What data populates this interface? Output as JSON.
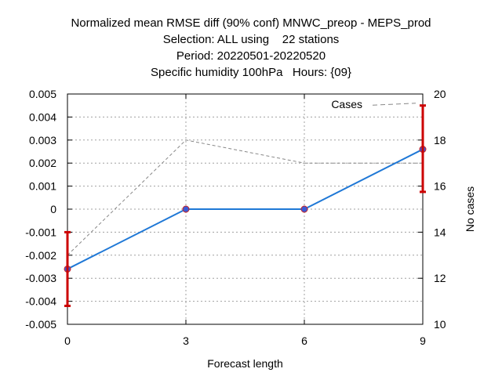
{
  "chart_data": {
    "type": "line",
    "title": [
      "Normalized mean RMSE diff (90% conf) MNWC_preop - MEPS_prod",
      "Selection: ALL using    22 stations",
      "Period: 20220501-20220520",
      "Specific humidity 100hPa   Hours: {09}"
    ],
    "xlabel": "Forecast length",
    "ylabel": "",
    "y2label": "No cases",
    "x": [
      0,
      3,
      6,
      9
    ],
    "xticks": [
      "0",
      "3",
      "6",
      "9"
    ],
    "ylim": [
      -0.005,
      0.005
    ],
    "yticks": [
      "-0.005",
      "-0.004",
      "-0.003",
      "-0.002",
      "-0.001",
      "0",
      "0.001",
      "0.002",
      "0.003",
      "0.004",
      "0.005"
    ],
    "y2lim": [
      10,
      20
    ],
    "y2ticks": [
      "10",
      "12",
      "14",
      "16",
      "18",
      "20"
    ],
    "grid": true,
    "series": [
      {
        "values": [
          -0.0026,
          0.0,
          0.0,
          0.0026
        ],
        "color": "#1f78d6",
        "marker_color": "#3b5bd6",
        "axis": "y"
      },
      {
        "name": "Cases",
        "values": [
          13,
          18,
          17,
          17
        ],
        "legend_end": 19.6,
        "color": "#888888",
        "dash": true,
        "axis": "y2"
      }
    ],
    "error_bars": [
      {
        "x": 0,
        "low": -0.0042,
        "high": -0.001
      },
      {
        "x": 9,
        "low": 0.00075,
        "high": 0.0045
      }
    ],
    "error_bar_color": "#cc0000",
    "legend_position": "top-right"
  }
}
